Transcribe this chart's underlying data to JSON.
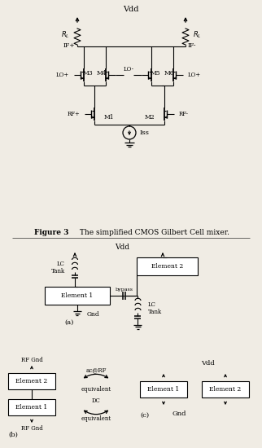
{
  "bg_color": "#f0ece4",
  "line_color": "#000000",
  "box_color": "#ffffff",
  "text_color": "#000000",
  "fig3_bold": "Figure 3",
  "fig3_rest": " The simplified CMOS Gilbert Cell mixer.",
  "vdd": "Vdd",
  "iss": "Iss",
  "lo_plus": "LO+",
  "lo_minus": "LO-",
  "if_plus": "IF+",
  "if_minus": "IF-",
  "rf_plus": "RF+",
  "rf_minus": "RF-",
  "rl": "R",
  "m1": "M1",
  "m2": "M2",
  "m3": "M3",
  "m4": "M4",
  "m5": "M5",
  "m6": "M6",
  "elem1": "Element 1",
  "elem2": "Element 2",
  "lc_tank": "LC\nTank",
  "bypass": "bypass",
  "gnd": "Gnd",
  "rf_gnd": "RF Gnd",
  "ac_rf": "ac@RF",
  "equivalent": "equivalent",
  "dc": "DC",
  "label_a": "(a)",
  "label_b": "(b)",
  "label_c": "(c)"
}
